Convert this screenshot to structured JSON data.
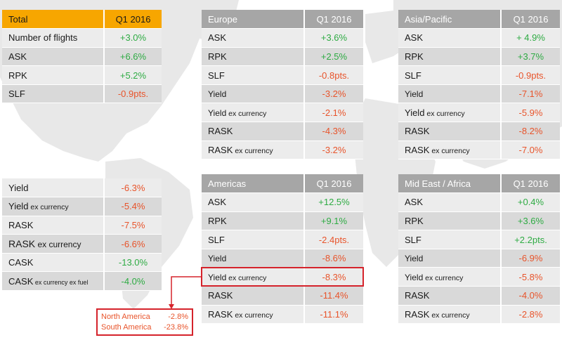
{
  "total": {
    "header": {
      "label": "Total",
      "period": "Q1 2016"
    },
    "rows": [
      {
        "label": "Number of flights",
        "value": "+3.0%",
        "sign": "pos"
      },
      {
        "label": "ASK",
        "value": "+6.6%",
        "sign": "pos"
      },
      {
        "label": "RPK",
        "value": "+5.2%",
        "sign": "pos"
      },
      {
        "label": "SLF",
        "value": "-0.9pts.",
        "sign": "neg"
      }
    ]
  },
  "total_yield": {
    "rows": [
      {
        "label": "Yield",
        "suffix": "",
        "value": "-6.3%",
        "sign": "neg"
      },
      {
        "label": "Yield",
        "suffix": " ex currency",
        "value": "-5.4%",
        "sign": "neg"
      },
      {
        "label": "RASK",
        "suffix": "",
        "value": "-7.5%",
        "sign": "neg"
      },
      {
        "label": "RASK",
        "suffix": " ex currency",
        "value": "-6.6%",
        "sign": "neg"
      },
      {
        "label": "CASK",
        "suffix": "",
        "value": "-13.0%",
        "sign": "pos"
      },
      {
        "label": "CASK",
        "suffix": " ex currency ex fuel",
        "value": "-4.0%",
        "sign": "pos"
      }
    ]
  },
  "europe": {
    "header": {
      "label": "Europe",
      "period": "Q1 2016"
    },
    "rows": [
      {
        "label": "ASK",
        "suffix": "",
        "value": "+3.6%",
        "sign": "pos"
      },
      {
        "label": "RPK",
        "suffix": "",
        "value": "+2.5%",
        "sign": "pos"
      },
      {
        "label": "SLF",
        "suffix": "",
        "value": "-0.8pts.",
        "sign": "neg"
      },
      {
        "label": "Yield",
        "suffix": "",
        "value": "-3.2%",
        "sign": "neg"
      },
      {
        "label": "Yield",
        "suffix": " ex currency",
        "value": "-2.1%",
        "sign": "neg"
      },
      {
        "label": "RASK",
        "suffix": "",
        "value": "-4.3%",
        "sign": "neg"
      },
      {
        "label": "RASK",
        "suffix": " ex currency",
        "value": "-3.2%",
        "sign": "neg"
      }
    ]
  },
  "asia": {
    "header": {
      "label": "Asia/Pacific",
      "period": "Q1 2016"
    },
    "rows": [
      {
        "label": "ASK",
        "suffix": "",
        "value": "+ 4.9%",
        "sign": "pos"
      },
      {
        "label": "RPK",
        "suffix": "",
        "value": "+3.7%",
        "sign": "pos"
      },
      {
        "label": "SLF",
        "suffix": "",
        "value": "-0.9pts.",
        "sign": "neg"
      },
      {
        "label": "Yield",
        "suffix": "",
        "value": "-7.1%",
        "sign": "neg"
      },
      {
        "label": "Yield",
        "suffix": " ex currency",
        "value": "-5.9%",
        "sign": "neg"
      },
      {
        "label": "RASK",
        "suffix": "",
        "value": "-8.2%",
        "sign": "neg"
      },
      {
        "label": "RASK",
        "suffix": " ex currency",
        "value": "-7.0%",
        "sign": "neg"
      }
    ]
  },
  "americas": {
    "header": {
      "label": "Americas",
      "period": "Q1 2016"
    },
    "rows": [
      {
        "label": "ASK",
        "suffix": "",
        "value": "+12.5%",
        "sign": "pos"
      },
      {
        "label": "RPK",
        "suffix": "",
        "value": "+9.1%",
        "sign": "pos"
      },
      {
        "label": "SLF",
        "suffix": "",
        "value": "-2.4pts.",
        "sign": "neg"
      },
      {
        "label": "Yield",
        "suffix": "",
        "value": "-8.6%",
        "sign": "neg"
      },
      {
        "label": "Yield",
        "suffix": " ex currency",
        "value": "-8.3%",
        "sign": "neg"
      },
      {
        "label": "RASK",
        "suffix": "",
        "value": "-11.4%",
        "sign": "neg"
      },
      {
        "label": "RASK",
        "suffix": " ex currency",
        "value": "-11.1%",
        "sign": "neg"
      }
    ]
  },
  "mideast": {
    "header": {
      "label": "Mid East / Africa",
      "period": "Q1 2016"
    },
    "rows": [
      {
        "label": "ASK",
        "suffix": "",
        "value": "+0.4%",
        "sign": "pos"
      },
      {
        "label": "RPK",
        "suffix": "",
        "value": "+3.6%",
        "sign": "pos"
      },
      {
        "label": "SLF",
        "suffix": "",
        "value": "+2.2pts.",
        "sign": "pos"
      },
      {
        "label": "Yield",
        "suffix": "",
        "value": "-6.9%",
        "sign": "neg"
      },
      {
        "label": "Yield",
        "suffix": " ex currency",
        "value": "-5.8%",
        "sign": "neg"
      },
      {
        "label": "RASK",
        "suffix": "",
        "value": "-4.0%",
        "sign": "neg"
      },
      {
        "label": "RASK",
        "suffix": " ex currency",
        "value": "-2.8%",
        "sign": "neg"
      }
    ]
  },
  "callout": {
    "rows": [
      {
        "label": "North America",
        "value": "-2.8%"
      },
      {
        "label": "South America",
        "value": "-23.8%"
      }
    ]
  },
  "colors": {
    "orange": "#f7a600",
    "header_gray": "#a6a6a6",
    "positive": "#2eab43",
    "negative": "#e8542b",
    "highlight": "#d5232b",
    "map": "#e8e8e8"
  }
}
